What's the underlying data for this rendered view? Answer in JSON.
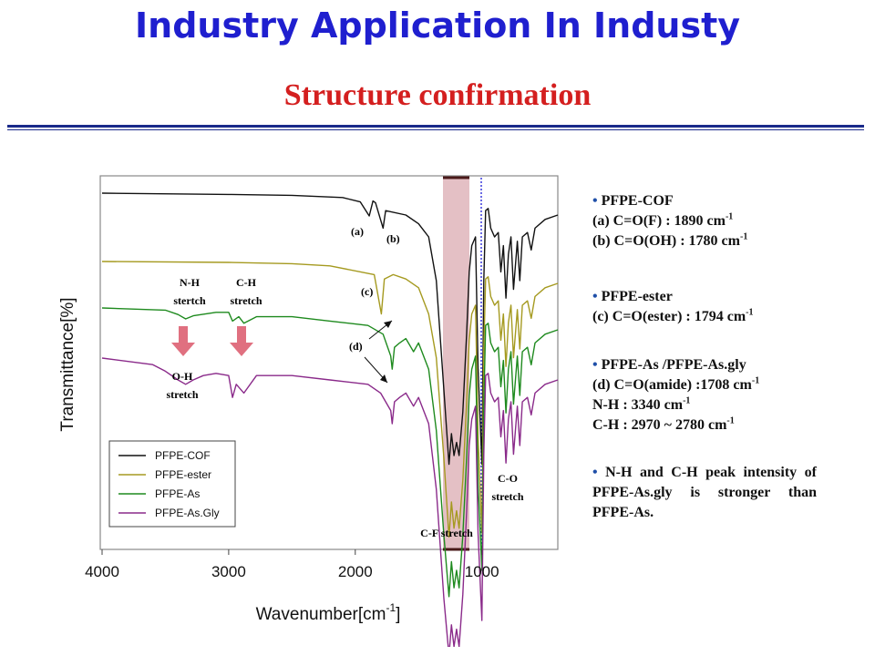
{
  "header": {
    "title": "Industry Application In Industy",
    "subtitle": "Structure  confirmation"
  },
  "chart_data": {
    "type": "line",
    "xlabel": "Wavenumber[cm",
    "xlabel_sup": "-1",
    "xlabel_end": "]",
    "ylabel": "Transmittance[%]",
    "xlim": [
      4000,
      400
    ],
    "x_ticks": [
      "4000",
      "3000",
      "2000",
      "1000"
    ],
    "x_tick_values": [
      4000,
      3000,
      2000,
      1000
    ],
    "legend_position": "bottom-left",
    "series": [
      {
        "name": "PFPE-COF",
        "color": "#111111",
        "points": [
          [
            4000,
            0.0
          ],
          [
            3000,
            0.3
          ],
          [
            2500,
            0.5
          ],
          [
            2100,
            1.0
          ],
          [
            1960,
            2.0
          ],
          [
            1890,
            5.2
          ],
          [
            1860,
            1.8
          ],
          [
            1840,
            2.2
          ],
          [
            1780,
            8.0
          ],
          [
            1760,
            4.0
          ],
          [
            1600,
            5.0
          ],
          [
            1500,
            7.0
          ],
          [
            1420,
            10
          ],
          [
            1360,
            20
          ],
          [
            1300,
            45
          ],
          [
            1260,
            62
          ],
          [
            1240,
            55
          ],
          [
            1220,
            60
          ],
          [
            1200,
            57
          ],
          [
            1180,
            60
          ],
          [
            1150,
            50
          ],
          [
            1120,
            32
          ],
          [
            1100,
            18
          ],
          [
            1080,
            12
          ],
          [
            1050,
            10
          ],
          [
            1030,
            40
          ],
          [
            1000,
            62
          ],
          [
            985,
            20
          ],
          [
            970,
            4
          ],
          [
            950,
            3.5
          ],
          [
            930,
            8
          ],
          [
            900,
            10
          ],
          [
            870,
            9
          ],
          [
            850,
            18
          ],
          [
            830,
            12
          ],
          [
            810,
            24
          ],
          [
            790,
            14
          ],
          [
            770,
            10
          ],
          [
            750,
            22
          ],
          [
            720,
            11
          ],
          [
            700,
            20
          ],
          [
            680,
            10
          ],
          [
            640,
            9
          ],
          [
            610,
            13
          ],
          [
            580,
            8
          ],
          [
            500,
            6
          ],
          [
            400,
            5
          ]
        ]
      },
      {
        "name": "PFPE-ester",
        "color": "#a59a20",
        "points": [
          [
            4000,
            0.0
          ],
          [
            3000,
            0.2
          ],
          [
            2500,
            0.5
          ],
          [
            2200,
            1.0
          ],
          [
            1850,
            3.0
          ],
          [
            1794,
            12.0
          ],
          [
            1770,
            4.0
          ],
          [
            1700,
            3.0
          ],
          [
            1600,
            4.0
          ],
          [
            1500,
            6.0
          ],
          [
            1420,
            12
          ],
          [
            1360,
            22
          ],
          [
            1300,
            45
          ],
          [
            1260,
            63
          ],
          [
            1240,
            55
          ],
          [
            1220,
            61
          ],
          [
            1200,
            57
          ],
          [
            1180,
            61
          ],
          [
            1150,
            50
          ],
          [
            1120,
            32
          ],
          [
            1100,
            18
          ],
          [
            1080,
            12
          ],
          [
            1050,
            10
          ],
          [
            1030,
            40
          ],
          [
            1000,
            62
          ],
          [
            985,
            20
          ],
          [
            970,
            4
          ],
          [
            950,
            3.5
          ],
          [
            930,
            8
          ],
          [
            900,
            10
          ],
          [
            870,
            9
          ],
          [
            850,
            18
          ],
          [
            830,
            12
          ],
          [
            810,
            24
          ],
          [
            790,
            14
          ],
          [
            770,
            10
          ],
          [
            750,
            22
          ],
          [
            720,
            11
          ],
          [
            700,
            20
          ],
          [
            680,
            10
          ],
          [
            640,
            9
          ],
          [
            610,
            13
          ],
          [
            580,
            8
          ],
          [
            500,
            6
          ],
          [
            400,
            5
          ]
        ]
      },
      {
        "name": "PFPE-As",
        "color": "#1e8a1e",
        "points": [
          [
            4000,
            0.0
          ],
          [
            3500,
            0.5
          ],
          [
            3400,
            1.5
          ],
          [
            3340,
            2.5
          ],
          [
            3280,
            1.8
          ],
          [
            3100,
            1.0
          ],
          [
            3000,
            1.0
          ],
          [
            2970,
            3.0
          ],
          [
            2920,
            2.0
          ],
          [
            2880,
            3.5
          ],
          [
            2780,
            2.0
          ],
          [
            2500,
            2.0
          ],
          [
            2200,
            3.0
          ],
          [
            1900,
            4.0
          ],
          [
            1780,
            6.0
          ],
          [
            1720,
            11
          ],
          [
            1708,
            14
          ],
          [
            1690,
            9
          ],
          [
            1650,
            8
          ],
          [
            1600,
            7
          ],
          [
            1540,
            10
          ],
          [
            1500,
            8
          ],
          [
            1420,
            14
          ],
          [
            1360,
            28
          ],
          [
            1300,
            52
          ],
          [
            1260,
            66
          ],
          [
            1240,
            58
          ],
          [
            1220,
            64
          ],
          [
            1200,
            60
          ],
          [
            1180,
            64
          ],
          [
            1150,
            52
          ],
          [
            1120,
            34
          ],
          [
            1100,
            20
          ],
          [
            1080,
            14
          ],
          [
            1050,
            11
          ],
          [
            1030,
            40
          ],
          [
            1000,
            60
          ],
          [
            985,
            22
          ],
          [
            970,
            4
          ],
          [
            950,
            3.5
          ],
          [
            930,
            8
          ],
          [
            900,
            10
          ],
          [
            870,
            9
          ],
          [
            850,
            18
          ],
          [
            830,
            12
          ],
          [
            810,
            24
          ],
          [
            790,
            14
          ],
          [
            770,
            10
          ],
          [
            750,
            22
          ],
          [
            720,
            11
          ],
          [
            700,
            20
          ],
          [
            680,
            10
          ],
          [
            640,
            9
          ],
          [
            610,
            13
          ],
          [
            580,
            8
          ],
          [
            500,
            6
          ],
          [
            400,
            5
          ]
        ]
      },
      {
        "name": "PFPE-As.Gly",
        "color": "#8a2a8a",
        "points": [
          [
            4000,
            0.0
          ],
          [
            3600,
            1.5
          ],
          [
            3500,
            3.0
          ],
          [
            3400,
            5.0
          ],
          [
            3340,
            6.0
          ],
          [
            3280,
            5.0
          ],
          [
            3200,
            4.0
          ],
          [
            3100,
            3.5
          ],
          [
            3000,
            4.0
          ],
          [
            2970,
            9.0
          ],
          [
            2940,
            6.0
          ],
          [
            2880,
            8.0
          ],
          [
            2780,
            4.0
          ],
          [
            2500,
            4.0
          ],
          [
            2200,
            5.0
          ],
          [
            1900,
            6.0
          ],
          [
            1800,
            8.0
          ],
          [
            1720,
            12
          ],
          [
            1708,
            15
          ],
          [
            1690,
            10
          ],
          [
            1650,
            9
          ],
          [
            1600,
            8
          ],
          [
            1540,
            11
          ],
          [
            1500,
            9
          ],
          [
            1420,
            15
          ],
          [
            1360,
            30
          ],
          [
            1300,
            55
          ],
          [
            1260,
            68
          ],
          [
            1240,
            61
          ],
          [
            1220,
            66
          ],
          [
            1200,
            62
          ],
          [
            1180,
            66
          ],
          [
            1150,
            54
          ],
          [
            1120,
            35
          ],
          [
            1100,
            20
          ],
          [
            1080,
            14
          ],
          [
            1050,
            11
          ],
          [
            1030,
            40
          ],
          [
            1000,
            60
          ],
          [
            985,
            22
          ],
          [
            970,
            4
          ],
          [
            950,
            3.5
          ],
          [
            930,
            8
          ],
          [
            900,
            10
          ],
          [
            870,
            9
          ],
          [
            850,
            18
          ],
          [
            830,
            12
          ],
          [
            810,
            24
          ],
          [
            790,
            14
          ],
          [
            770,
            10
          ],
          [
            750,
            22
          ],
          [
            720,
            11
          ],
          [
            700,
            20
          ],
          [
            680,
            10
          ],
          [
            640,
            9
          ],
          [
            610,
            13
          ],
          [
            580,
            8
          ],
          [
            500,
            6
          ],
          [
            400,
            5
          ]
        ]
      }
    ],
    "annotations": {
      "a": "(a)",
      "b": "(b)",
      "c": "(c)",
      "d": "(d)",
      "nh": [
        "N-H",
        "stertch"
      ],
      "ch": [
        "C-H",
        "stretch"
      ],
      "oh": [
        "O-H",
        "stretch"
      ],
      "co": [
        "C-O",
        "stretch"
      ],
      "cf": "C-F stretch"
    }
  },
  "side_notes": {
    "cof_title": "PFPE-COF",
    "cof_a": "(a) C=O(F) : 1890 cm",
    "cof_b": "(b) C=O(OH) : 1780 cm",
    "ester_title": "PFPE-ester",
    "ester_c": "(c) C=O(ester)  : 1794 cm",
    "as_title": "PFPE-As /PFPE-As.gly",
    "as_d": "(d) C=O(amide) :1708 cm",
    "as_nh": "N-H : 3340 cm",
    "as_ch": "C-H : 2970 ~ 2780 cm",
    "sup": "-1",
    "bullet": "•",
    "conclusion": "N-H and C-H peak intensity of PFPE-As.gly is stronger than  PFPE-As."
  }
}
